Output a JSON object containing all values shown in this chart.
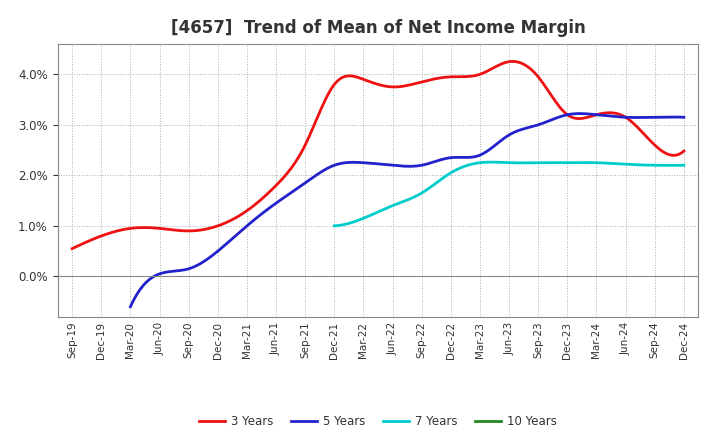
{
  "title": "[4657]  Trend of Mean of Net Income Margin",
  "x_labels": [
    "Sep-19",
    "Dec-19",
    "Mar-20",
    "Jun-20",
    "Sep-20",
    "Dec-20",
    "Mar-21",
    "Jun-21",
    "Sep-21",
    "Dec-21",
    "Mar-22",
    "Jun-22",
    "Sep-22",
    "Dec-22",
    "Mar-23",
    "Jun-23",
    "Sep-23",
    "Dec-23",
    "Mar-24",
    "Jun-24",
    "Sep-24",
    "Dec-24"
  ],
  "series": {
    "3 Years": {
      "color": "#ee1111",
      "data_x": [
        "Sep-19",
        "Dec-19",
        "Mar-20",
        "Jun-20",
        "Sep-20",
        "Dec-20",
        "Mar-21",
        "Jun-21",
        "Sep-21",
        "Dec-21",
        "Mar-22",
        "Jun-22",
        "Sep-22",
        "Dec-22",
        "Mar-23",
        "Jun-23",
        "Sep-23",
        "Dec-23",
        "Mar-24",
        "Jun-24",
        "Sep-24",
        "Dec-24"
      ],
      "data_y": [
        0.0055,
        0.008,
        0.0095,
        0.0095,
        0.009,
        0.01,
        0.013,
        0.018,
        0.026,
        0.038,
        0.039,
        0.0375,
        0.0385,
        0.0395,
        0.04,
        0.0425,
        0.0395,
        0.032,
        0.032,
        0.0315,
        0.026,
        0.0248
      ]
    },
    "5 Years": {
      "color": "#2222cc",
      "data_x": [
        "Mar-20",
        "Jun-20",
        "Sep-20",
        "Dec-20",
        "Mar-21",
        "Jun-21",
        "Sep-21",
        "Dec-21",
        "Mar-22",
        "Jun-22",
        "Sep-22",
        "Dec-22",
        "Mar-23",
        "Jun-23",
        "Sep-23",
        "Dec-23",
        "Mar-24",
        "Jun-24",
        "Sep-24",
        "Dec-24"
      ],
      "data_y": [
        -0.006,
        0.0005,
        0.0015,
        0.005,
        0.01,
        0.0145,
        0.0185,
        0.022,
        0.0225,
        0.022,
        0.022,
        0.0235,
        0.024,
        0.028,
        0.03,
        0.032,
        0.032,
        0.0315,
        0.0315,
        0.0315
      ]
    },
    "7 Years": {
      "color": "#00cccc",
      "data_x": [
        "Dec-21",
        "Mar-22",
        "Jun-22",
        "Sep-22",
        "Dec-22",
        "Mar-23",
        "Jun-23",
        "Sep-23",
        "Dec-23",
        "Mar-24",
        "Jun-24",
        "Sep-24",
        "Dec-24"
      ],
      "data_y": [
        0.01,
        0.0115,
        0.014,
        0.0165,
        0.0205,
        0.0225,
        0.0225,
        0.0225,
        0.0225,
        0.0225,
        0.0222,
        0.022,
        0.022
      ]
    },
    "10 Years": {
      "color": "#228822",
      "data_x": [],
      "data_y": []
    }
  },
  "ylim": [
    -0.008,
    0.046
  ],
  "yticks": [
    0.0,
    0.01,
    0.02,
    0.03,
    0.04
  ],
  "background_color": "#ffffff",
  "plot_bg_color": "#ffffff",
  "grid_color": "#999999",
  "legend_labels": [
    "3 Years",
    "5 Years",
    "7 Years",
    "10 Years"
  ],
  "legend_colors": [
    "#ee1111",
    "#2222cc",
    "#00cccc",
    "#228822"
  ],
  "title_fontsize": 12,
  "title_color": "#333333"
}
